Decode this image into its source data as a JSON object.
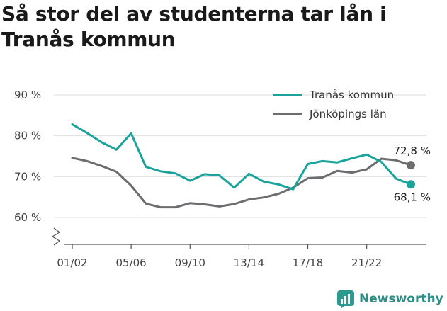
{
  "title": "Så stor del av studenterna tar lån i Tranås kommun",
  "brand": {
    "name": "Newsworthy"
  },
  "chart_data": {
    "type": "line",
    "title": "Så stor del av studenterna tar lån i Tranås kommun",
    "xlabel": "",
    "ylabel": "",
    "ylim": [
      55,
      92
    ],
    "y_ticks": [
      {
        "value": 90,
        "label": "90 %"
      },
      {
        "value": 80,
        "label": "80 %"
      },
      {
        "value": 70,
        "label": "70 %"
      },
      {
        "value": 60,
        "label": "60 %"
      }
    ],
    "x_tick_labels": [
      "01/02",
      "05/06",
      "09/10",
      "13/14",
      "17/18",
      "21/22"
    ],
    "x_tick_index": [
      0,
      4,
      8,
      12,
      16,
      20
    ],
    "categories": [
      "01/02",
      "02/03",
      "03/04",
      "04/05",
      "05/06",
      "06/07",
      "07/08",
      "08/09",
      "09/10",
      "10/11",
      "11/12",
      "12/13",
      "13/14",
      "14/15",
      "15/16",
      "16/17",
      "17/18",
      "18/19",
      "19/20",
      "20/21",
      "21/22",
      "22/23",
      "23/24",
      "24/25"
    ],
    "y_axis_break": true,
    "grid": true,
    "legend_position": "top-right",
    "series": [
      {
        "name": "Tranås kommun",
        "color": "#1aa39a",
        "values": [
          82.8,
          80.7,
          78.4,
          76.6,
          80.6,
          72.4,
          71.3,
          70.8,
          69.0,
          70.6,
          70.3,
          67.3,
          70.7,
          68.8,
          68.1,
          66.9,
          73.1,
          73.8,
          73.5,
          74.5,
          75.4,
          73.6,
          69.5,
          68.1
        ],
        "end_label": "68,1 %"
      },
      {
        "name": "Jönköpings län",
        "color": "#6d6d70",
        "values": [
          74.6,
          73.8,
          72.6,
          71.2,
          67.8,
          63.4,
          62.5,
          62.5,
          63.5,
          63.2,
          62.7,
          63.3,
          64.4,
          64.9,
          65.8,
          67.3,
          69.6,
          69.8,
          71.4,
          71.0,
          71.8,
          74.4,
          74.0,
          72.8
        ],
        "end_label": "72,8 %"
      }
    ]
  }
}
